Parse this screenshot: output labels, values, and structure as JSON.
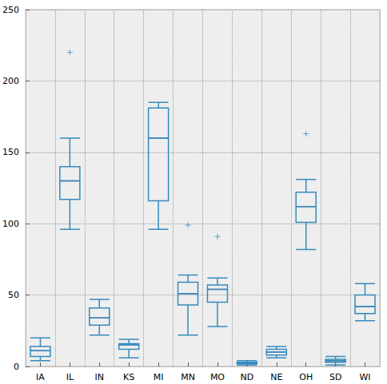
{
  "chart_data": {
    "type": "boxplot",
    "categories": [
      "IA",
      "IL",
      "IN",
      "KS",
      "MI",
      "MN",
      "MO",
      "ND",
      "NE",
      "OH",
      "SD",
      "WI"
    ],
    "values": [
      [
        4,
        7,
        11,
        14,
        20
      ],
      [
        96,
        117,
        130,
        140,
        160
      ],
      [
        22,
        29,
        34,
        41,
        47
      ],
      [
        6,
        12,
        15,
        16,
        19
      ],
      [
        96,
        116,
        160,
        181,
        185
      ],
      [
        22,
        43,
        51,
        59,
        64
      ],
      [
        28,
        45,
        54,
        57,
        62
      ],
      [
        1,
        2,
        2.5,
        3,
        4
      ],
      [
        6,
        8,
        10,
        12,
        14
      ],
      [
        82,
        101,
        112,
        122,
        131
      ],
      [
        1,
        3,
        4,
        5,
        7
      ],
      [
        32,
        37,
        42,
        50,
        58
      ]
    ],
    "outliers": [
      {
        "category": "IL",
        "value": 220
      },
      {
        "category": "MN",
        "value": 99
      },
      {
        "category": "MO",
        "value": 91
      },
      {
        "category": "OH",
        "value": 163
      }
    ],
    "color": "#348ABD",
    "marker": "plus",
    "ylim": [
      0,
      250
    ],
    "yticks": [
      0,
      50,
      100,
      150,
      200,
      250
    ],
    "grid": true
  }
}
